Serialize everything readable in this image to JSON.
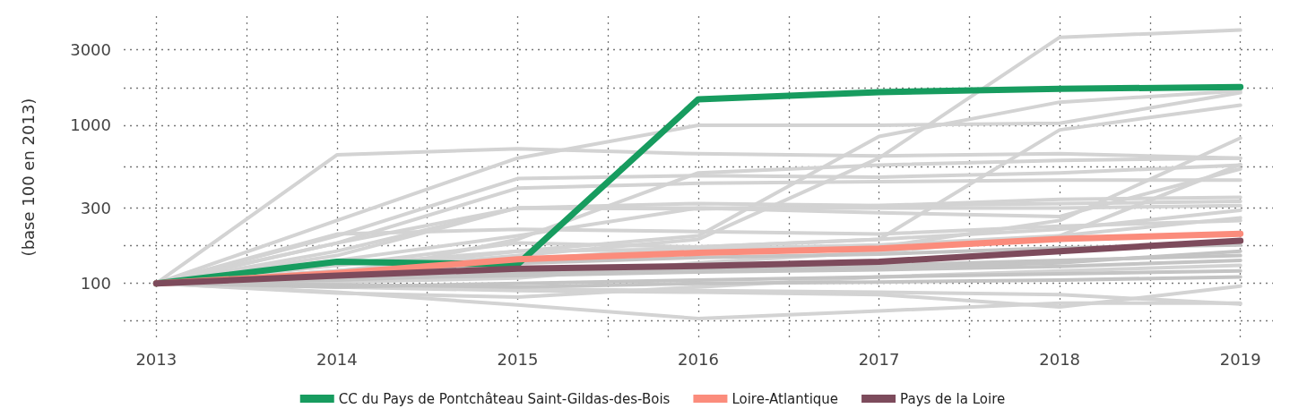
{
  "chart_data": {
    "type": "line",
    "ylabel": "(base 100 en 2013)",
    "log": "y",
    "grid": true,
    "legend": "bottom",
    "marker": "none",
    "line_style": "solid",
    "x": [
      2013,
      2014,
      2015,
      2016,
      2017,
      2018,
      2019
    ],
    "xlim": [
      2012.82,
      2019.18
    ],
    "xticks": [
      2013,
      {
        "value": 2013.5,
        "label": null
      },
      2014,
      {
        "value": 2014.5,
        "label": null
      },
      2015,
      {
        "value": 2015.5,
        "label": null
      },
      2016,
      {
        "value": 2016.5,
        "label": null
      },
      2017,
      {
        "value": 2017.5,
        "label": null
      },
      2018,
      {
        "value": 2018.5,
        "label": null
      },
      2019
    ],
    "ylim": [
      45,
      4900
    ],
    "yticks": [
      {
        "value": 58,
        "label": null
      },
      100,
      {
        "value": 173,
        "label": null
      },
      300,
      {
        "value": 548,
        "label": null
      },
      1000,
      {
        "value": 1732,
        "label": null
      },
      3000
    ],
    "series": [
      {
        "color": "#d3d3d3",
        "values": [
          100,
          650,
          710,
          660,
          640,
          660,
          620
        ]
      },
      {
        "color": "#d3d3d3",
        "values": [
          100,
          120,
          150,
          190,
          620,
          3600,
          4000
        ]
      },
      {
        "color": "#d3d3d3",
        "values": [
          100,
          250,
          620,
          1000,
          1000,
          1030,
          1610
        ]
      },
      {
        "color": "#d3d3d3",
        "values": [
          100,
          130,
          160,
          200,
          850,
          1400,
          1650
        ]
      },
      {
        "color": "#d3d3d3",
        "values": [
          100,
          110,
          140,
          170,
          190,
          935,
          1340
        ]
      },
      {
        "color": "#d3d3d3",
        "values": [
          100,
          200,
          460,
          480,
          470,
          500,
          560
        ]
      },
      {
        "color": "#d3d3d3",
        "values": [
          100,
          180,
          400,
          430,
          440,
          450,
          450
        ]
      },
      {
        "color": "#d3d3d3",
        "values": [
          100,
          160,
          300,
          296,
          310,
          340,
          350
        ]
      },
      {
        "color": "#d3d3d3",
        "values": [
          100,
          205,
          220,
          213,
          205,
          230,
          250
        ]
      },
      {
        "color": "#d3d3d3",
        "values": [
          100,
          120,
          140,
          160,
          170,
          250,
          830
        ]
      },
      {
        "color": "#d3d3d3",
        "values": [
          100,
          102,
          108,
          135,
          158,
          200,
          565
        ]
      },
      {
        "color": "#d3d3d3",
        "values": [
          100,
          140,
          200,
          300,
          280,
          265,
          530
        ]
      },
      {
        "color": "#d3d3d3",
        "values": [
          100,
          110,
          190,
          500,
          560,
          600,
          620
        ]
      },
      {
        "color": "#d3d3d3",
        "values": [
          100,
          87,
          82,
          95,
          110,
          120,
          130
        ]
      },
      {
        "color": "#d3d3d3",
        "values": [
          100,
          88,
          73,
          60,
          67,
          75,
          75
        ]
      },
      {
        "color": "#d3d3d3",
        "values": [
          100,
          95,
          90,
          88,
          85,
          71,
          96
        ]
      },
      {
        "color": "#d3d3d3",
        "values": [
          100,
          98,
          92,
          90,
          88,
          85,
          74
        ]
      },
      {
        "color": "#c4c4c4",
        "values": [
          100,
          110,
          120,
          125,
          130,
          140,
          150
        ]
      },
      {
        "color": "#c4c4c4",
        "values": [
          100,
          95,
          100,
          105,
          110,
          115,
          120
        ]
      },
      {
        "color": "#c4c4c4",
        "values": [
          100,
          117,
          134,
          146,
          153,
          168,
          175
        ]
      },
      {
        "color": "#c4c4c4",
        "values": [
          100,
          105,
          115,
          120,
          125,
          135,
          160
        ]
      },
      {
        "color": "#c4c4c4",
        "values": [
          100,
          98,
          95,
          100,
          102,
          105,
          110
        ]
      },
      {
        "color": "#c4c4c4",
        "values": [
          100,
          108,
          112,
          118,
          122,
          128,
          140
        ]
      },
      {
        "color": "#d3d3d3",
        "values": [
          100,
          120,
          160,
          165,
          175,
          200,
          260
        ]
      },
      {
        "color": "#d3d3d3",
        "values": [
          100,
          130,
          180,
          170,
          190,
          220,
          290
        ]
      },
      {
        "color": "#d3d3d3",
        "values": [
          100,
          150,
          300,
          300,
          300,
          300,
          310
        ]
      },
      {
        "color": "#d3d3d3",
        "values": [
          100,
          180,
          300,
          320,
          310,
          320,
          330
        ]
      },
      {
        "name": "CC du Pays de Pontchâteau Saint-Gildas-des-Bois",
        "color": "#179c5f",
        "values": [
          100,
          137,
          132,
          1460,
          1620,
          1700,
          1745
        ]
      },
      {
        "name": "Loire-Atlantique",
        "color": "#fb8c7c",
        "values": [
          100,
          116,
          142,
          156,
          166,
          191,
          206
        ]
      },
      {
        "name": "Pays de la Loire",
        "color": "#7d4b5c",
        "values": [
          100,
          112,
          124,
          129,
          137,
          160,
          186
        ]
      }
    ]
  }
}
